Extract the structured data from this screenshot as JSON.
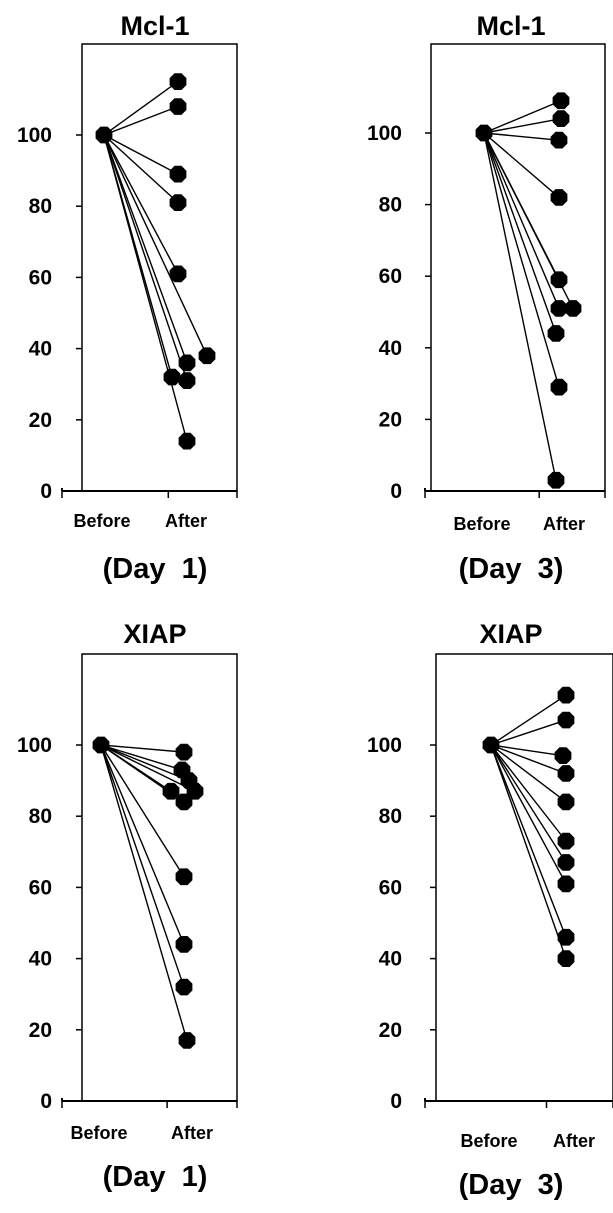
{
  "chart_data": [
    {
      "type": "scatter",
      "title": "Mcl-1",
      "categories": [
        "Before",
        "After"
      ],
      "subtitle": "(Day  1)",
      "ylim": [
        0,
        120
      ],
      "yticks": [
        "0",
        "20",
        "40",
        "60",
        "80",
        "100"
      ],
      "series": [
        {
          "values": [
            100,
            115
          ]
        },
        {
          "values": [
            100,
            108
          ]
        },
        {
          "values": [
            100,
            89
          ]
        },
        {
          "values": [
            100,
            81
          ]
        },
        {
          "values": [
            100,
            61
          ]
        },
        {
          "values": [
            100,
            38
          ]
        },
        {
          "values": [
            100,
            36
          ]
        },
        {
          "values": [
            100,
            32
          ]
        },
        {
          "values": [
            100,
            31
          ]
        },
        {
          "values": [
            100,
            14
          ]
        }
      ]
    },
    {
      "type": "scatter",
      "title": "Mcl-1",
      "categories": [
        "Before",
        "After"
      ],
      "subtitle": "(Day  3)",
      "ylim": [
        0,
        120
      ],
      "yticks": [
        "0",
        "20",
        "40",
        "60",
        "80",
        "100"
      ],
      "series": [
        {
          "values": [
            100,
            109
          ]
        },
        {
          "values": [
            100,
            104
          ]
        },
        {
          "values": [
            100,
            98
          ]
        },
        {
          "values": [
            100,
            82
          ]
        },
        {
          "values": [
            100,
            59
          ]
        },
        {
          "values": [
            100,
            51
          ]
        },
        {
          "values": [
            100,
            51
          ]
        },
        {
          "values": [
            100,
            44
          ]
        },
        {
          "values": [
            100,
            29
          ]
        },
        {
          "values": [
            100,
            3
          ]
        }
      ]
    },
    {
      "type": "scatter",
      "title": "XIAP",
      "categories": [
        "Before",
        "After"
      ],
      "subtitle": "(Day  1)",
      "ylim": [
        0,
        120
      ],
      "yticks": [
        "0",
        "20",
        "40",
        "60",
        "80",
        "100"
      ],
      "series": [
        {
          "values": [
            100,
            98
          ]
        },
        {
          "values": [
            100,
            93
          ]
        },
        {
          "values": [
            100,
            90
          ]
        },
        {
          "values": [
            100,
            87
          ]
        },
        {
          "values": [
            100,
            87
          ]
        },
        {
          "values": [
            100,
            84
          ]
        },
        {
          "values": [
            100,
            63
          ]
        },
        {
          "values": [
            100,
            44
          ]
        },
        {
          "values": [
            100,
            32
          ]
        },
        {
          "values": [
            100,
            17
          ]
        }
      ]
    },
    {
      "type": "scatter",
      "title": "XIAP",
      "categories": [
        "Before",
        "After"
      ],
      "subtitle": "(Day  3)",
      "ylim": [
        0,
        120
      ],
      "yticks": [
        "0",
        "20",
        "40",
        "60",
        "80",
        "100"
      ],
      "series": [
        {
          "values": [
            100,
            114
          ]
        },
        {
          "values": [
            100,
            107
          ]
        },
        {
          "values": [
            100,
            97
          ]
        },
        {
          "values": [
            100,
            92
          ]
        },
        {
          "values": [
            100,
            84
          ]
        },
        {
          "values": [
            100,
            73
          ]
        },
        {
          "values": [
            100,
            67
          ]
        },
        {
          "values": [
            100,
            61
          ]
        },
        {
          "values": [
            100,
            46
          ]
        },
        {
          "values": [
            100,
            40
          ]
        }
      ]
    }
  ]
}
